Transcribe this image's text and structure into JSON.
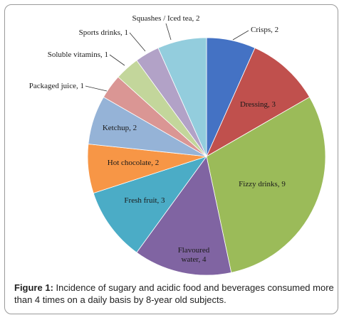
{
  "figure": {
    "caption_prefix": "Figure 1:",
    "caption_text": " Incidence of sugary and acidic food and beverages consumed more than 4 times on a daily basis by 8-year old subjects."
  },
  "chart_data": {
    "type": "pie",
    "title": "",
    "slices": [
      {
        "label": "Crisps",
        "value": 2,
        "color": "#4472c4"
      },
      {
        "label": "Dressing",
        "value": 3,
        "color": "#c0504d"
      },
      {
        "label": "Fizzy drinks",
        "value": 9,
        "color": "#9bbb59"
      },
      {
        "label": "Flavoured water",
        "value": 4,
        "color": "#8064a2"
      },
      {
        "label": "Fresh fruit",
        "value": 3,
        "color": "#4bacc6"
      },
      {
        "label": "Hot chocolate",
        "value": 2,
        "color": "#f79646"
      },
      {
        "label": "Ketchup",
        "value": 2,
        "color": "#95b3d7"
      },
      {
        "label": "Packaged juice",
        "value": 1,
        "color": "#da9694"
      },
      {
        "label": "Soluble vitamins",
        "value": 1,
        "color": "#c3d69b"
      },
      {
        "label": "Sports drinks",
        "value": 1,
        "color": "#b2a2c7"
      },
      {
        "label": "Squashes / Iced tea",
        "value": 2,
        "color": "#93cddd"
      }
    ]
  }
}
